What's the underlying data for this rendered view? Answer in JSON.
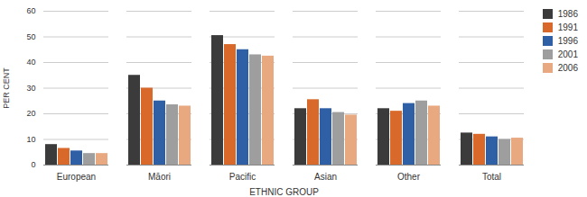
{
  "chart_data": {
    "type": "bar",
    "categories": [
      "European",
      "Māori",
      "Pacific",
      "Asian",
      "Other",
      "Total"
    ],
    "series": [
      {
        "name": "1986",
        "color": "#3b3b3b",
        "values": [
          8,
          35,
          50.5,
          22,
          22,
          12.5
        ]
      },
      {
        "name": "1991",
        "color": "#d9692b",
        "values": [
          6.5,
          30,
          47,
          25.5,
          21,
          12
        ]
      },
      {
        "name": "1996",
        "color": "#2f5fa5",
        "values": [
          5.5,
          25,
          45,
          22,
          24,
          11
        ]
      },
      {
        "name": "2001",
        "color": "#9e9e9e",
        "values": [
          4.5,
          23.5,
          43,
          20.5,
          25,
          10
        ]
      },
      {
        "name": "2006",
        "color": "#e8a880",
        "values": [
          4.5,
          23,
          42.5,
          19.5,
          23,
          10.5
        ]
      }
    ],
    "x_label": "ETHNIC GROUP",
    "y_label": "PER CENT",
    "ylim": [
      0,
      60
    ],
    "yticks": [
      0,
      10,
      20,
      30,
      40,
      50,
      60
    ],
    "grid": true,
    "legend": "top-right"
  }
}
